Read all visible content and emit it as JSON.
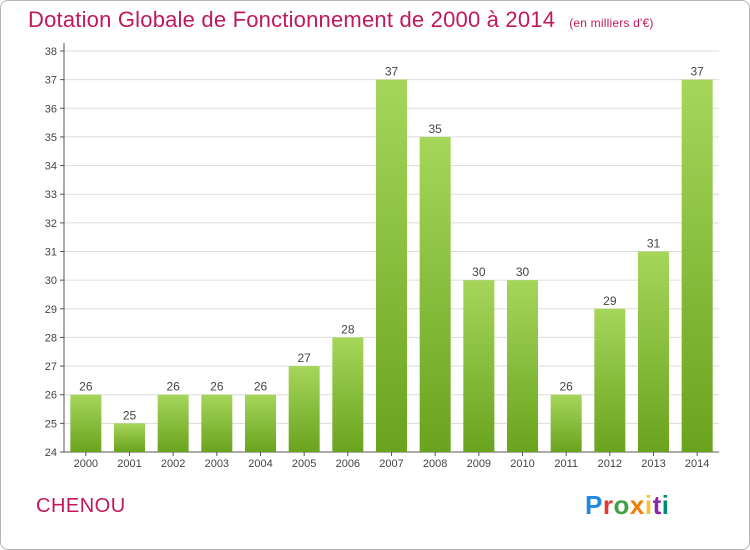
{
  "header": {
    "title": "Dotation Globale de Fonctionnement de 2000 à 2014",
    "unit": "(en milliers d'€)"
  },
  "footer": {
    "town": "CHENOU",
    "logo_letters": [
      "P",
      "r",
      "o",
      "x",
      "i",
      "t",
      "i"
    ],
    "logo_colors": [
      "#1e88e5",
      "#e53935",
      "#43a047",
      "#f57c00",
      "#fbc02d",
      "#8e24aa",
      "#00897b"
    ]
  },
  "colors": {
    "title": "#c2185b",
    "bar_top": "#a5d65a",
    "bar_bottom": "#6aa31e",
    "grid": "#dcdcdc"
  },
  "chart_data": {
    "type": "bar",
    "categories": [
      "2000",
      "2001",
      "2002",
      "2003",
      "2004",
      "2005",
      "2006",
      "2007",
      "2008",
      "2009",
      "2010",
      "2011",
      "2012",
      "2013",
      "2014"
    ],
    "values": [
      26,
      25,
      26,
      26,
      26,
      27,
      28,
      37,
      35,
      30,
      30,
      26,
      29,
      31,
      37
    ],
    "ylim": [
      24,
      38
    ],
    "yticks": [
      24,
      25,
      26,
      27,
      28,
      29,
      30,
      31,
      32,
      33,
      34,
      35,
      36,
      37,
      38
    ],
    "grid": true,
    "data_labels": true
  }
}
